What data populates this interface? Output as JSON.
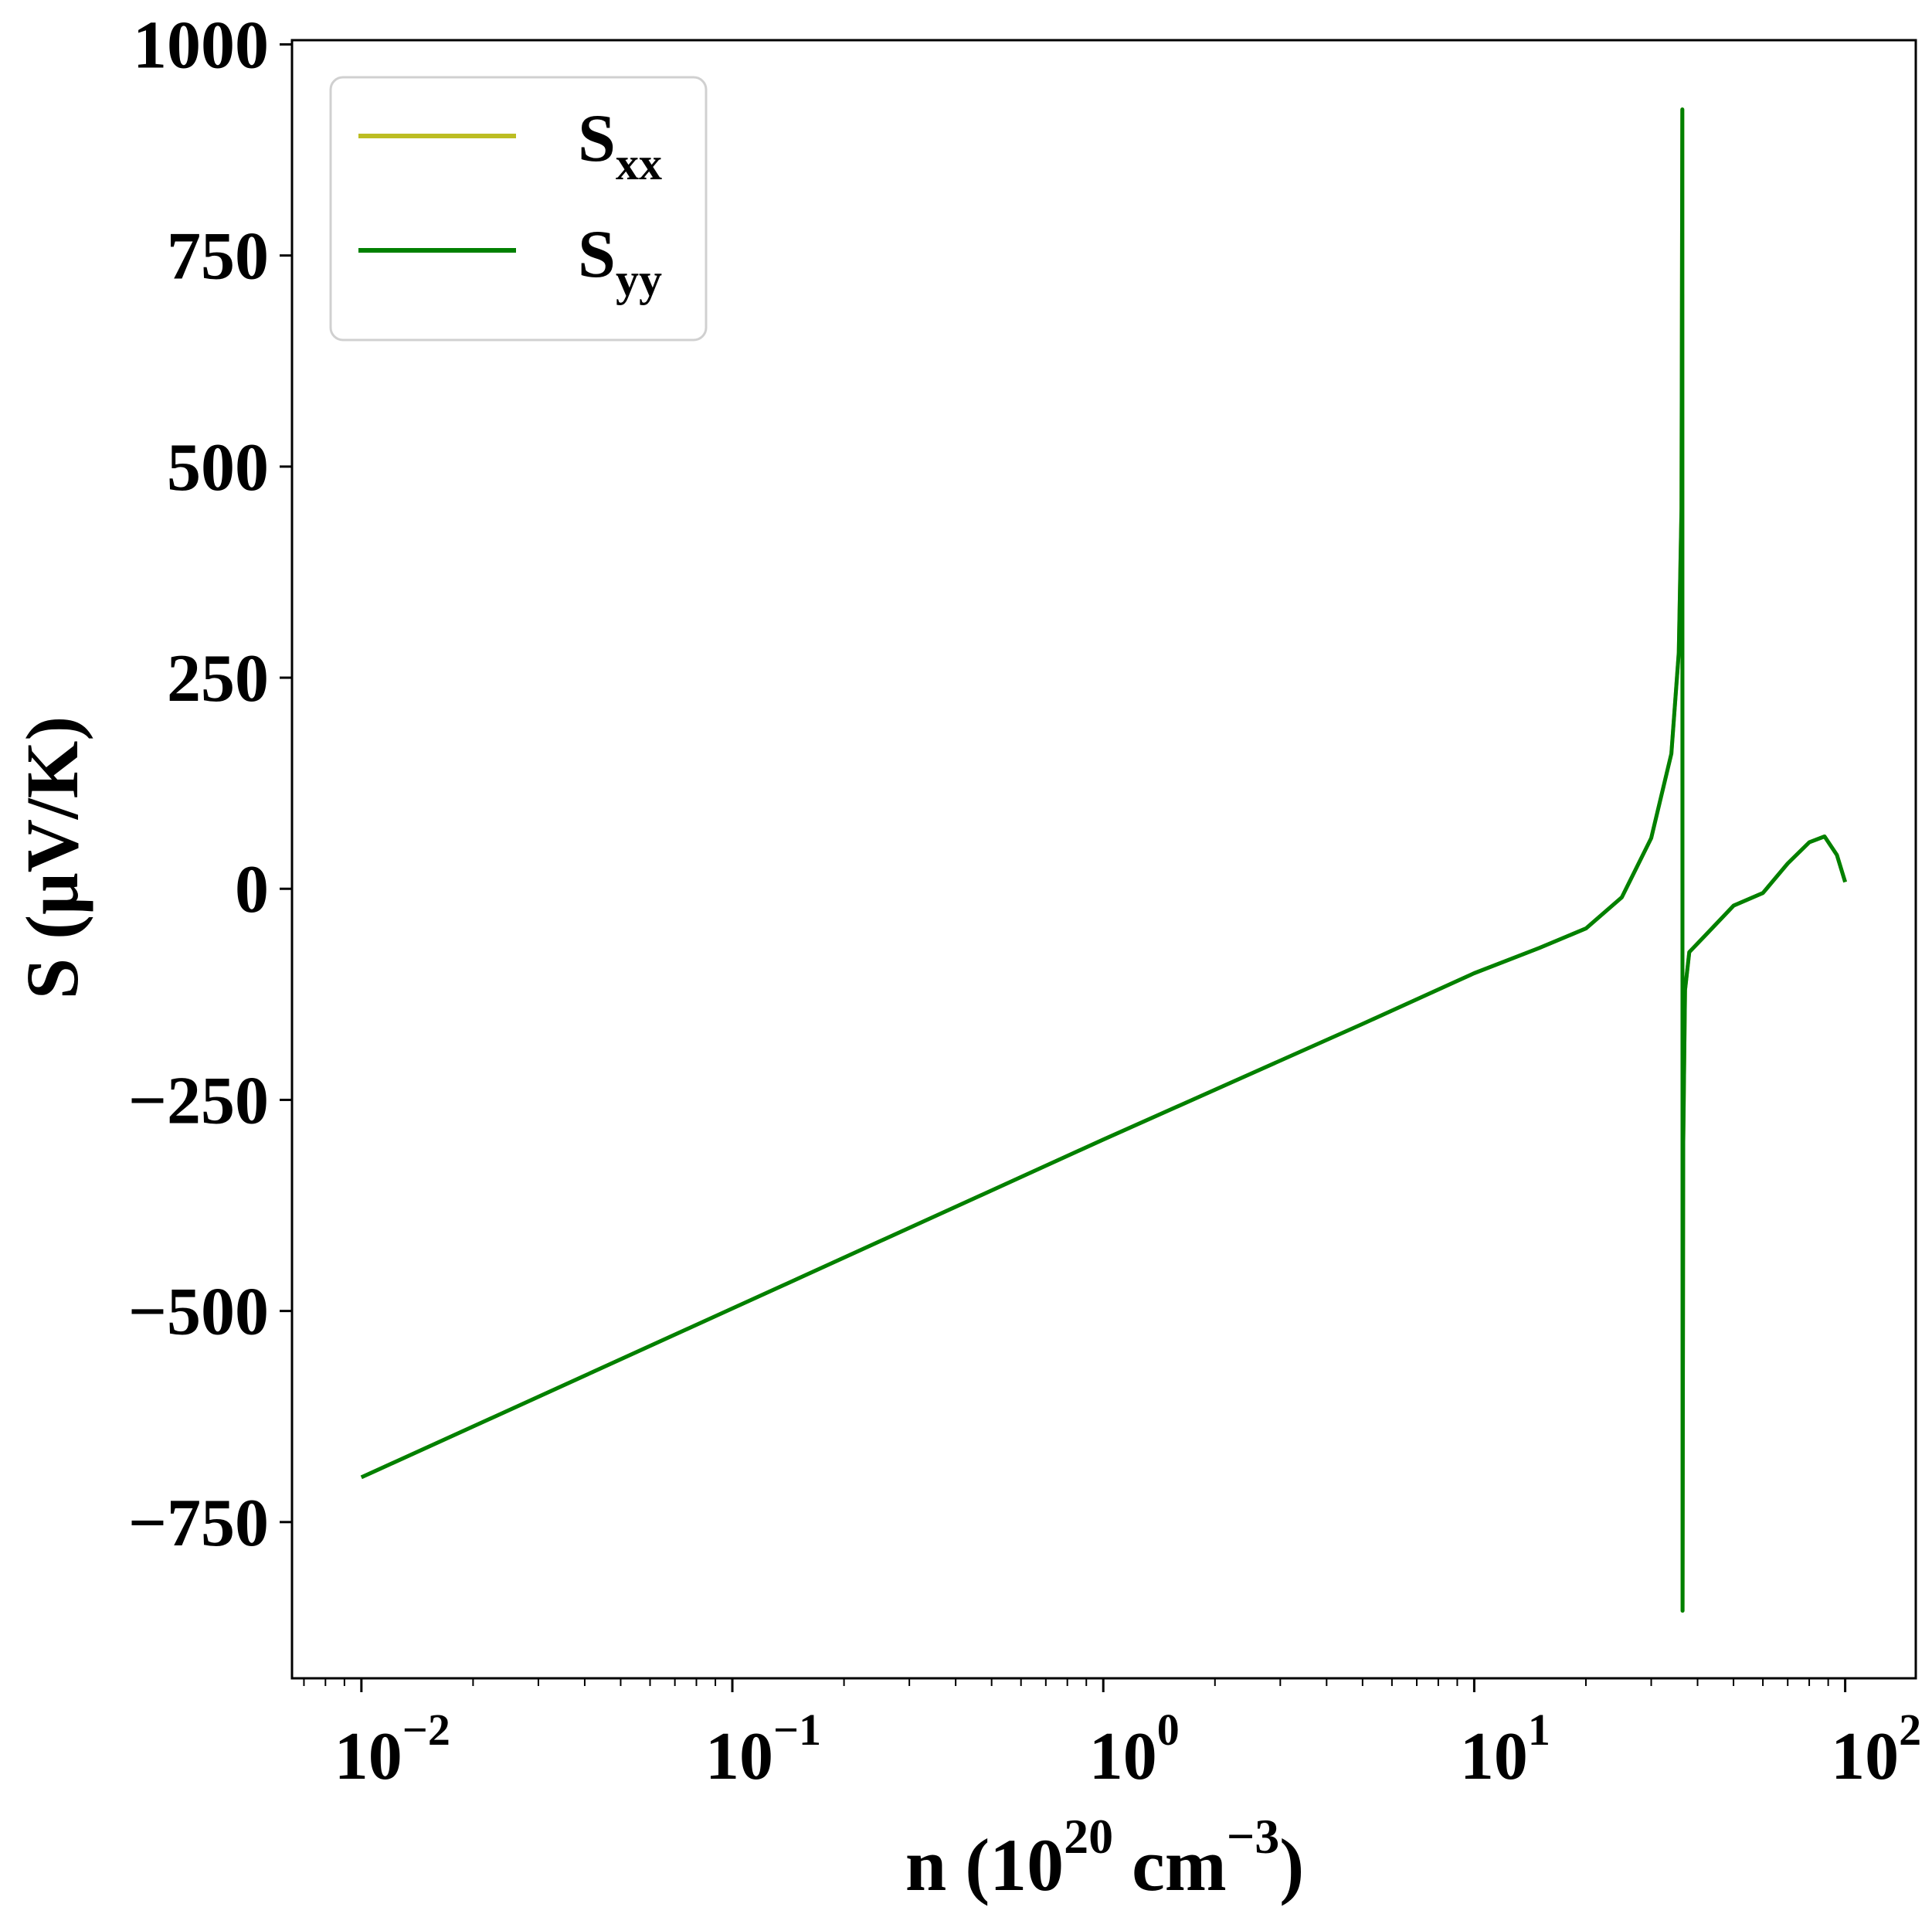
{
  "chart_data": {
    "type": "line",
    "x_scale": "log",
    "xlim": [
      0.0065,
      155
    ],
    "ylim": [
      -935,
      1005
    ],
    "ylabel": "S (μV/K)",
    "xlabel_parts": {
      "prefix": "n (10",
      "exp1": "20",
      "mid": " cm",
      "exp2": "−3",
      "suffix": ")"
    },
    "x_ticks": [
      {
        "value": 0.01,
        "base": "10",
        "exp": "−2"
      },
      {
        "value": 0.1,
        "base": "10",
        "exp": "−1"
      },
      {
        "value": 1,
        "base": "10",
        "exp": "0"
      },
      {
        "value": 10,
        "base": "10",
        "exp": "1"
      },
      {
        "value": 100,
        "base": "10",
        "exp": "2"
      }
    ],
    "y_ticks": [
      {
        "value": 1000,
        "label": "1000"
      },
      {
        "value": 750,
        "label": "750"
      },
      {
        "value": 500,
        "label": "500"
      },
      {
        "value": 250,
        "label": "250"
      },
      {
        "value": 0,
        "label": "0"
      },
      {
        "value": -250,
        "label": "−250"
      },
      {
        "value": -500,
        "label": "−500"
      },
      {
        "value": -750,
        "label": "−750"
      }
    ],
    "grid": false,
    "legend": {
      "placement": "top-left",
      "entries": [
        {
          "base": "S",
          "sub": "xx",
          "color": "#bcbd22"
        },
        {
          "base": "S",
          "sub": "yy",
          "color": "#008000"
        }
      ]
    },
    "series": [
      {
        "name": "Sxx",
        "color": "#bcbd22",
        "points": [
          [
            0.01,
            -697
          ],
          [
            0.1,
            -497
          ],
          [
            1,
            -297
          ],
          [
            5,
            -160
          ],
          [
            10,
            -100
          ],
          [
            15,
            -70
          ],
          [
            20,
            -47
          ],
          [
            25,
            -10
          ],
          [
            30,
            60
          ],
          [
            34,
            160
          ],
          [
            35.6,
            280
          ],
          [
            36.2,
            450
          ],
          [
            36.4,
            923
          ],
          [
            36.45,
            -855
          ],
          [
            36.6,
            -300
          ],
          [
            37,
            -120
          ],
          [
            38,
            -75
          ],
          [
            42,
            -55
          ],
          [
            50,
            -20
          ],
          [
            60,
            -5
          ],
          [
            70,
            30
          ],
          [
            80,
            55
          ],
          [
            88,
            62
          ],
          [
            95,
            40
          ],
          [
            100,
            8
          ]
        ]
      },
      {
        "name": "Syy",
        "color": "#008000",
        "points": [
          [
            0.01,
            -697
          ],
          [
            0.1,
            -497
          ],
          [
            1,
            -297
          ],
          [
            5,
            -160
          ],
          [
            10,
            -100
          ],
          [
            15,
            -70
          ],
          [
            20,
            -47
          ],
          [
            25,
            -10
          ],
          [
            30,
            60
          ],
          [
            34,
            160
          ],
          [
            35.6,
            280
          ],
          [
            36.2,
            450
          ],
          [
            36.4,
            923
          ],
          [
            36.45,
            -855
          ],
          [
            36.6,
            -300
          ],
          [
            37,
            -120
          ],
          [
            38,
            -75
          ],
          [
            42,
            -55
          ],
          [
            50,
            -20
          ],
          [
            60,
            -5
          ],
          [
            70,
            30
          ],
          [
            80,
            55
          ],
          [
            88,
            62
          ],
          [
            95,
            40
          ],
          [
            100,
            8
          ]
        ]
      }
    ]
  }
}
